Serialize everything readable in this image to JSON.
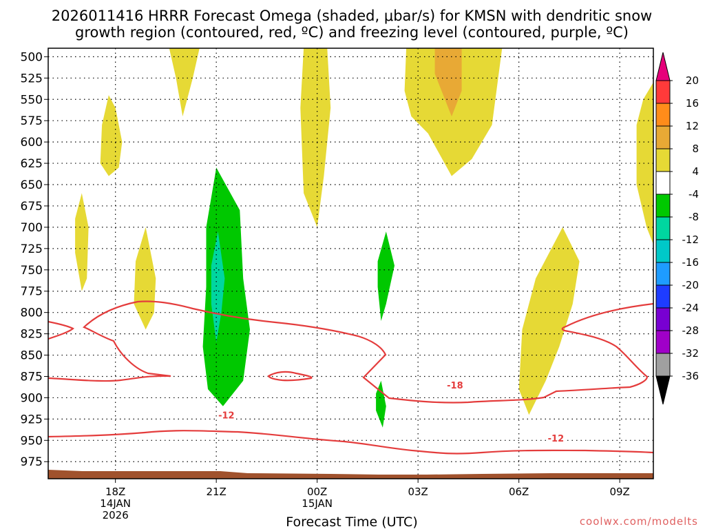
{
  "chart_data": {
    "type": "heatmap",
    "title_line1": "2026011416 HRRR Forecast Omega (shaded, μbar/s) for KMSN with dendritic snow",
    "title_line2": "growth region (contoured, red, ºC) and freezing level (contoured, purple, ºC)",
    "xlabel": "Forecast Time (UTC)",
    "watermark": "coolwx.com/modelts",
    "x_ticks": [
      {
        "hour": 2,
        "l1": "18Z",
        "l2": "14JAN",
        "l3": "2026"
      },
      {
        "hour": 5,
        "l1": "21Z",
        "l2": "",
        "l3": ""
      },
      {
        "hour": 8,
        "l1": "00Z",
        "l2": "15JAN",
        "l3": ""
      },
      {
        "hour": 11,
        "l1": "03Z",
        "l2": "",
        "l3": ""
      },
      {
        "hour": 14,
        "l1": "06Z",
        "l2": "",
        "l3": ""
      },
      {
        "hour": 17,
        "l1": "09Z",
        "l2": "",
        "l3": ""
      }
    ],
    "x_range_hours": [
      0,
      18
    ],
    "y_ticks": [
      "500",
      "525",
      "550",
      "575",
      "600",
      "625",
      "650",
      "675",
      "700",
      "725",
      "750",
      "775",
      "800",
      "825",
      "850",
      "875",
      "900",
      "925",
      "950",
      "975"
    ],
    "y_range_mb": [
      490,
      995
    ],
    "colorbar": {
      "labels": [
        "20",
        "16",
        "12",
        "8",
        "4",
        "-4",
        "-8",
        "-12",
        "-16",
        "-20",
        "-24",
        "-28",
        "-32",
        "-36"
      ],
      "colors": [
        "#ff3a3a",
        "#ff8c1a",
        "#e8a935",
        "#e6d935",
        "#ffffff",
        "#00c800",
        "#00d6a0",
        "#00c8c8",
        "#1e9cff",
        "#1e3cff",
        "#7800d2",
        "#a000c8",
        "#a0a0a0"
      ],
      "top_color": "#e6007a",
      "bottom_color": "#000000"
    },
    "contour_labels": [
      {
        "text": "-12",
        "hour": 5.3,
        "mb": 921
      },
      {
        "text": "-18",
        "hour": 12.1,
        "mb": 886
      },
      {
        "text": "-12",
        "hour": 15.1,
        "mb": 948
      }
    ],
    "omega_regions": [
      {
        "name": "yellow-4-a",
        "color": "#e6d935",
        "pts": [
          [
            3.6,
            490
          ],
          [
            4.5,
            490
          ],
          [
            4.3,
            525
          ],
          [
            4.0,
            570
          ],
          [
            3.8,
            525
          ]
        ]
      },
      {
        "name": "yellow-4-b",
        "color": "#e6d935",
        "pts": [
          [
            1.8,
            545
          ],
          [
            2.0,
            560
          ],
          [
            2.2,
            600
          ],
          [
            2.1,
            630
          ],
          [
            1.8,
            640
          ],
          [
            1.55,
            625
          ],
          [
            1.6,
            580
          ]
        ]
      },
      {
        "name": "yellow-4-c",
        "color": "#e6d935",
        "pts": [
          [
            1.0,
            660
          ],
          [
            1.2,
            700
          ],
          [
            1.15,
            760
          ],
          [
            1.0,
            775
          ],
          [
            0.8,
            730
          ],
          [
            0.8,
            690
          ]
        ]
      },
      {
        "name": "yellow-4-d",
        "color": "#e6d935",
        "pts": [
          [
            2.9,
            700
          ],
          [
            3.2,
            760
          ],
          [
            3.15,
            800
          ],
          [
            2.9,
            820
          ],
          [
            2.55,
            790
          ],
          [
            2.6,
            740
          ]
        ]
      },
      {
        "name": "yellow-4-e",
        "color": "#e6d935",
        "pts": [
          [
            7.6,
            490
          ],
          [
            8.3,
            490
          ],
          [
            8.4,
            560
          ],
          [
            8.2,
            640
          ],
          [
            8.0,
            700
          ],
          [
            7.6,
            660
          ],
          [
            7.5,
            560
          ]
        ]
      },
      {
        "name": "yellow-4-f",
        "color": "#e6d935",
        "pts": [
          [
            10.65,
            490
          ],
          [
            13.5,
            490
          ],
          [
            13.2,
            580
          ],
          [
            12.6,
            620
          ],
          [
            12.0,
            640
          ],
          [
            11.3,
            590
          ],
          [
            10.8,
            570
          ],
          [
            10.6,
            540
          ]
        ]
      },
      {
        "name": "orange-8-a",
        "color": "#e8a935",
        "pts": [
          [
            11.5,
            490
          ],
          [
            12.3,
            490
          ],
          [
            12.3,
            540
          ],
          [
            12.0,
            570
          ],
          [
            11.5,
            520
          ]
        ]
      },
      {
        "name": "yellow-4-g",
        "color": "#e6d935",
        "pts": [
          [
            15.3,
            700
          ],
          [
            15.8,
            740
          ],
          [
            15.6,
            790
          ],
          [
            15.2,
            840
          ],
          [
            14.8,
            880
          ],
          [
            14.3,
            920
          ],
          [
            14.0,
            890
          ],
          [
            14.1,
            820
          ],
          [
            14.5,
            760
          ]
        ]
      },
      {
        "name": "yellow-4-h",
        "color": "#e6d935",
        "pts": [
          [
            18.0,
            530
          ],
          [
            18.0,
            720
          ],
          [
            17.8,
            700
          ],
          [
            17.5,
            650
          ],
          [
            17.5,
            580
          ],
          [
            17.7,
            550
          ]
        ]
      },
      {
        "name": "green-m4-a",
        "color": "#00c800",
        "pts": [
          [
            5.0,
            630
          ],
          [
            5.7,
            680
          ],
          [
            5.8,
            760
          ],
          [
            6.0,
            820
          ],
          [
            5.8,
            880
          ],
          [
            5.2,
            910
          ],
          [
            4.75,
            890
          ],
          [
            4.6,
            840
          ],
          [
            4.7,
            770
          ],
          [
            4.7,
            700
          ]
        ]
      },
      {
        "name": "teal-m8-a",
        "color": "#00d6a0",
        "pts": [
          [
            5.05,
            705
          ],
          [
            5.25,
            760
          ],
          [
            5.15,
            800
          ],
          [
            5.0,
            835
          ],
          [
            4.85,
            790
          ],
          [
            4.85,
            745
          ]
        ]
      },
      {
        "name": "green-m4-b",
        "color": "#00c800",
        "pts": [
          [
            10.05,
            705
          ],
          [
            10.3,
            745
          ],
          [
            10.05,
            790
          ],
          [
            9.9,
            810
          ],
          [
            9.8,
            770
          ],
          [
            9.8,
            740
          ]
        ]
      },
      {
        "name": "green-m4-c",
        "color": "#00c800",
        "pts": [
          [
            9.9,
            880
          ],
          [
            10.05,
            910
          ],
          [
            9.95,
            935
          ],
          [
            9.75,
            915
          ],
          [
            9.75,
            895
          ]
        ]
      }
    ]
  }
}
